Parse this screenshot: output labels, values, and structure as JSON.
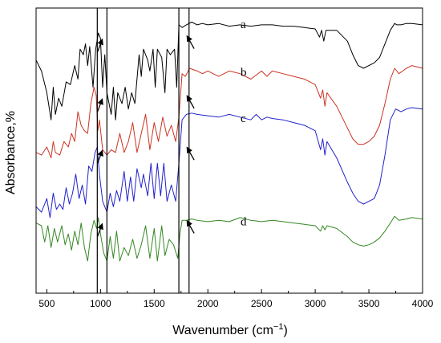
{
  "chart_data": {
    "type": "line",
    "title": "",
    "xlabel": "Wavenumber (cm",
    "xlabel_sup": "−1",
    "xlabel_close": ")",
    "ylabel": "Absorbance,%",
    "xlim": [
      400,
      4000
    ],
    "ylim": [
      0,
      1
    ],
    "x_ticks": [
      500,
      1000,
      1500,
      2000,
      2500,
      3000,
      3500,
      4000
    ],
    "grid": false,
    "legend": "none",
    "marker_lines_x": [
      970,
      1060,
      1730,
      1825
    ],
    "arrow_x": [
      995,
      1805
    ],
    "series": [
      {
        "name": "a",
        "color": "#000000",
        "points": [
          [
            400,
            0.82
          ],
          [
            450,
            0.78
          ],
          [
            500,
            0.7
          ],
          [
            540,
            0.6
          ],
          [
            560,
            0.72
          ],
          [
            580,
            0.62
          ],
          [
            610,
            0.68
          ],
          [
            640,
            0.65
          ],
          [
            680,
            0.74
          ],
          [
            720,
            0.73
          ],
          [
            760,
            0.8
          ],
          [
            790,
            0.75
          ],
          [
            810,
            0.86
          ],
          [
            840,
            0.84
          ],
          [
            860,
            0.88
          ],
          [
            880,
            0.8
          ],
          [
            900,
            0.87
          ],
          [
            930,
            0.72
          ],
          [
            955,
            0.86
          ],
          [
            980,
            0.92
          ],
          [
            1000,
            0.9
          ],
          [
            1020,
            0.72
          ],
          [
            1040,
            0.84
          ],
          [
            1060,
            0.7
          ],
          [
            1080,
            0.66
          ],
          [
            1100,
            0.62
          ],
          [
            1120,
            0.72
          ],
          [
            1140,
            0.6
          ],
          [
            1160,
            0.7
          ],
          [
            1200,
            0.66
          ],
          [
            1230,
            0.72
          ],
          [
            1260,
            0.64
          ],
          [
            1290,
            0.7
          ],
          [
            1320,
            0.66
          ],
          [
            1360,
            0.84
          ],
          [
            1380,
            0.76
          ],
          [
            1400,
            0.86
          ],
          [
            1440,
            0.82
          ],
          [
            1460,
            0.78
          ],
          [
            1490,
            0.86
          ],
          [
            1510,
            0.72
          ],
          [
            1530,
            0.86
          ],
          [
            1570,
            0.83
          ],
          [
            1600,
            0.7
          ],
          [
            1620,
            0.86
          ],
          [
            1650,
            0.84
          ],
          [
            1690,
            0.86
          ],
          [
            1710,
            0.72
          ],
          [
            1730,
            0.95
          ],
          [
            1760,
            0.94
          ],
          [
            1800,
            0.95
          ],
          [
            1850,
            0.96
          ],
          [
            1900,
            0.95
          ],
          [
            1950,
            0.955
          ],
          [
            2000,
            0.95
          ],
          [
            2100,
            0.955
          ],
          [
            2200,
            0.945
          ],
          [
            2300,
            0.95
          ],
          [
            2400,
            0.945
          ],
          [
            2500,
            0.95
          ],
          [
            2600,
            0.95
          ],
          [
            2700,
            0.945
          ],
          [
            2800,
            0.945
          ],
          [
            2900,
            0.94
          ],
          [
            3000,
            0.935
          ],
          [
            3040,
            0.905
          ],
          [
            3060,
            0.93
          ],
          [
            3080,
            0.89
          ],
          [
            3100,
            0.93
          ],
          [
            3200,
            0.93
          ],
          [
            3300,
            0.89
          ],
          [
            3350,
            0.84
          ],
          [
            3400,
            0.8
          ],
          [
            3450,
            0.79
          ],
          [
            3500,
            0.8
          ],
          [
            3550,
            0.81
          ],
          [
            3600,
            0.83
          ],
          [
            3650,
            0.88
          ],
          [
            3700,
            0.93
          ],
          [
            3740,
            0.955
          ],
          [
            3760,
            0.95
          ],
          [
            3800,
            0.95
          ],
          [
            3850,
            0.955
          ],
          [
            3900,
            0.955
          ],
          [
            4000,
            0.95
          ]
        ]
      },
      {
        "name": "b",
        "color": "#cc3322",
        "points": [
          [
            400,
            0.48
          ],
          [
            450,
            0.47
          ],
          [
            500,
            0.5
          ],
          [
            540,
            0.46
          ],
          [
            560,
            0.52
          ],
          [
            580,
            0.48
          ],
          [
            620,
            0.47
          ],
          [
            660,
            0.52
          ],
          [
            700,
            0.5
          ],
          [
            730,
            0.55
          ],
          [
            760,
            0.52
          ],
          [
            790,
            0.63
          ],
          [
            820,
            0.58
          ],
          [
            850,
            0.56
          ],
          [
            880,
            0.55
          ],
          [
            910,
            0.66
          ],
          [
            940,
            0.72
          ],
          [
            960,
            0.69
          ],
          [
            975,
            0.56
          ],
          [
            990,
            0.6
          ],
          [
            1020,
            0.49
          ],
          [
            1060,
            0.47
          ],
          [
            1100,
            0.49
          ],
          [
            1140,
            0.48
          ],
          [
            1180,
            0.55
          ],
          [
            1220,
            0.48
          ],
          [
            1260,
            0.52
          ],
          [
            1300,
            0.59
          ],
          [
            1340,
            0.48
          ],
          [
            1380,
            0.55
          ],
          [
            1420,
            0.62
          ],
          [
            1460,
            0.49
          ],
          [
            1500,
            0.59
          ],
          [
            1540,
            0.52
          ],
          [
            1580,
            0.61
          ],
          [
            1620,
            0.54
          ],
          [
            1660,
            0.58
          ],
          [
            1700,
            0.52
          ],
          [
            1730,
            0.61
          ],
          [
            1760,
            0.77
          ],
          [
            1790,
            0.76
          ],
          [
            1830,
            0.79
          ],
          [
            1900,
            0.78
          ],
          [
            1950,
            0.77
          ],
          [
            2000,
            0.78
          ],
          [
            2100,
            0.76
          ],
          [
            2200,
            0.78
          ],
          [
            2300,
            0.77
          ],
          [
            2400,
            0.75
          ],
          [
            2500,
            0.78
          ],
          [
            2550,
            0.76
          ],
          [
            2600,
            0.78
          ],
          [
            2700,
            0.77
          ],
          [
            2800,
            0.76
          ],
          [
            2900,
            0.75
          ],
          [
            3000,
            0.73
          ],
          [
            3050,
            0.68
          ],
          [
            3070,
            0.71
          ],
          [
            3090,
            0.65
          ],
          [
            3110,
            0.7
          ],
          [
            3200,
            0.65
          ],
          [
            3300,
            0.57
          ],
          [
            3350,
            0.53
          ],
          [
            3400,
            0.51
          ],
          [
            3450,
            0.51
          ],
          [
            3500,
            0.52
          ],
          [
            3550,
            0.54
          ],
          [
            3600,
            0.58
          ],
          [
            3650,
            0.66
          ],
          [
            3700,
            0.75
          ],
          [
            3740,
            0.79
          ],
          [
            3780,
            0.77
          ],
          [
            3850,
            0.79
          ],
          [
            3900,
            0.8
          ],
          [
            4000,
            0.79
          ]
        ]
      },
      {
        "name": "c",
        "color": "#2222cc",
        "points": [
          [
            400,
            0.28
          ],
          [
            450,
            0.26
          ],
          [
            500,
            0.31
          ],
          [
            530,
            0.24
          ],
          [
            560,
            0.33
          ],
          [
            590,
            0.27
          ],
          [
            620,
            0.29
          ],
          [
            650,
            0.27
          ],
          [
            680,
            0.35
          ],
          [
            710,
            0.29
          ],
          [
            740,
            0.33
          ],
          [
            770,
            0.4
          ],
          [
            800,
            0.31
          ],
          [
            830,
            0.36
          ],
          [
            860,
            0.29
          ],
          [
            890,
            0.43
          ],
          [
            920,
            0.41
          ],
          [
            950,
            0.48
          ],
          [
            970,
            0.5
          ],
          [
            990,
            0.4
          ],
          [
            1020,
            0.3
          ],
          [
            1060,
            0.26
          ],
          [
            1090,
            0.33
          ],
          [
            1120,
            0.28
          ],
          [
            1150,
            0.34
          ],
          [
            1180,
            0.3
          ],
          [
            1220,
            0.41
          ],
          [
            1250,
            0.3
          ],
          [
            1280,
            0.39
          ],
          [
            1310,
            0.3
          ],
          [
            1340,
            0.42
          ],
          [
            1380,
            0.35
          ],
          [
            1400,
            0.4
          ],
          [
            1440,
            0.32
          ],
          [
            1470,
            0.44
          ],
          [
            1500,
            0.31
          ],
          [
            1530,
            0.44
          ],
          [
            1560,
            0.32
          ],
          [
            1590,
            0.44
          ],
          [
            1620,
            0.3
          ],
          [
            1660,
            0.36
          ],
          [
            1700,
            0.3
          ],
          [
            1730,
            0.44
          ],
          [
            1760,
            0.6
          ],
          [
            1800,
            0.62
          ],
          [
            1850,
            0.625
          ],
          [
            1900,
            0.62
          ],
          [
            2000,
            0.615
          ],
          [
            2100,
            0.61
          ],
          [
            2200,
            0.62
          ],
          [
            2300,
            0.61
          ],
          [
            2400,
            0.6
          ],
          [
            2450,
            0.62
          ],
          [
            2500,
            0.6
          ],
          [
            2550,
            0.61
          ],
          [
            2600,
            0.605
          ],
          [
            2700,
            0.6
          ],
          [
            2800,
            0.59
          ],
          [
            2900,
            0.58
          ],
          [
            3000,
            0.56
          ],
          [
            3050,
            0.49
          ],
          [
            3070,
            0.53
          ],
          [
            3090,
            0.47
          ],
          [
            3110,
            0.52
          ],
          [
            3200,
            0.46
          ],
          [
            3300,
            0.37
          ],
          [
            3350,
            0.33
          ],
          [
            3400,
            0.3
          ],
          [
            3450,
            0.29
          ],
          [
            3500,
            0.3
          ],
          [
            3550,
            0.31
          ],
          [
            3600,
            0.36
          ],
          [
            3650,
            0.47
          ],
          [
            3700,
            0.6
          ],
          [
            3750,
            0.64
          ],
          [
            3800,
            0.63
          ],
          [
            3850,
            0.64
          ],
          [
            3900,
            0.645
          ],
          [
            4000,
            0.64
          ]
        ]
      },
      {
        "name": "d",
        "color": "#338822",
        "points": [
          [
            400,
            0.22
          ],
          [
            450,
            0.21
          ],
          [
            480,
            0.15
          ],
          [
            510,
            0.21
          ],
          [
            540,
            0.13
          ],
          [
            570,
            0.2
          ],
          [
            600,
            0.15
          ],
          [
            640,
            0.21
          ],
          [
            670,
            0.14
          ],
          [
            700,
            0.18
          ],
          [
            730,
            0.12
          ],
          [
            760,
            0.19
          ],
          [
            790,
            0.14
          ],
          [
            820,
            0.22
          ],
          [
            850,
            0.13
          ],
          [
            880,
            0.08
          ],
          [
            910,
            0.18
          ],
          [
            940,
            0.23
          ],
          [
            965,
            0.2
          ],
          [
            980,
            0.24
          ],
          [
            1000,
            0.18
          ],
          [
            1030,
            0.11
          ],
          [
            1060,
            0.08
          ],
          [
            1090,
            0.17
          ],
          [
            1120,
            0.09
          ],
          [
            1150,
            0.19
          ],
          [
            1180,
            0.08
          ],
          [
            1220,
            0.13
          ],
          [
            1260,
            0.1
          ],
          [
            1300,
            0.16
          ],
          [
            1340,
            0.09
          ],
          [
            1380,
            0.14
          ],
          [
            1420,
            0.21
          ],
          [
            1460,
            0.09
          ],
          [
            1500,
            0.2
          ],
          [
            1530,
            0.08
          ],
          [
            1570,
            0.21
          ],
          [
            1600,
            0.1
          ],
          [
            1640,
            0.16
          ],
          [
            1680,
            0.14
          ],
          [
            1720,
            0.09
          ],
          [
            1740,
            0.18
          ],
          [
            1760,
            0.23
          ],
          [
            1800,
            0.23
          ],
          [
            1850,
            0.235
          ],
          [
            1900,
            0.23
          ],
          [
            2000,
            0.225
          ],
          [
            2100,
            0.23
          ],
          [
            2200,
            0.225
          ],
          [
            2300,
            0.24
          ],
          [
            2400,
            0.23
          ],
          [
            2500,
            0.225
          ],
          [
            2600,
            0.23
          ],
          [
            2700,
            0.225
          ],
          [
            2800,
            0.22
          ],
          [
            2900,
            0.215
          ],
          [
            3000,
            0.21
          ],
          [
            3050,
            0.19
          ],
          [
            3070,
            0.21
          ],
          [
            3090,
            0.195
          ],
          [
            3110,
            0.21
          ],
          [
            3200,
            0.2
          ],
          [
            3300,
            0.17
          ],
          [
            3350,
            0.15
          ],
          [
            3400,
            0.14
          ],
          [
            3450,
            0.135
          ],
          [
            3500,
            0.14
          ],
          [
            3550,
            0.15
          ],
          [
            3600,
            0.165
          ],
          [
            3650,
            0.19
          ],
          [
            3700,
            0.22
          ],
          [
            3740,
            0.245
          ],
          [
            3780,
            0.23
          ],
          [
            3850,
            0.235
          ],
          [
            3900,
            0.24
          ],
          [
            4000,
            0.235
          ]
        ]
      }
    ]
  }
}
